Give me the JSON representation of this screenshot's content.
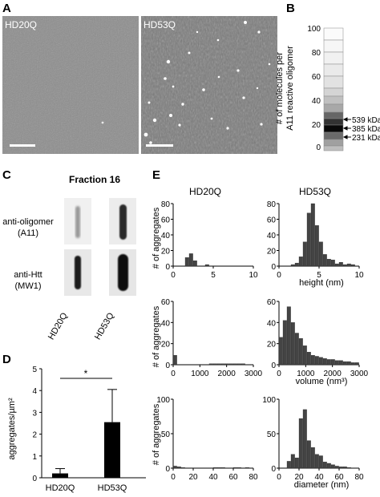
{
  "panels": {
    "A": {
      "letter": "A",
      "image_labels": [
        "HD20Q",
        "HD53Q"
      ]
    },
    "B": {
      "letter": "B",
      "ylabel_line1": "# of molecules per",
      "ylabel_line2": "A11 reactive oligomer",
      "ticks": [
        "100",
        "80",
        "60",
        "40",
        "20",
        "0"
      ],
      "markers": [
        "539 kDa",
        "385 kDa",
        "231 kDa"
      ]
    },
    "C": {
      "letter": "C",
      "title": "Fraction 16",
      "row1_line1": "anti-oligomer",
      "row1_line2": "(A11)",
      "row2_line1": "anti-Htt",
      "row2_line2": "(MW1)",
      "col_labels": [
        "HD20Q",
        "HD53Q"
      ]
    },
    "D": {
      "letter": "D",
      "significance": "*"
    },
    "E": {
      "letter": "E",
      "col_titles": [
        "HD20Q",
        "HD53Q"
      ],
      "ylabel": "# of aggregates",
      "xlabels": [
        "height (nm)",
        "volume (nm³)",
        "diameter (nm)"
      ]
    }
  },
  "colors": {
    "bar": "#444444",
    "axis": "#000000"
  },
  "chart_data": [
    {
      "type": "bar",
      "panel": "D",
      "categories": [
        "HD20Q",
        "HD53Q"
      ],
      "values": [
        0.2,
        2.55
      ],
      "errors": [
        0.22,
        1.5
      ],
      "ylabel": "aggregates/µm²",
      "ylim": [
        0,
        5
      ],
      "yticks": [
        0,
        1,
        2,
        3,
        4,
        5
      ]
    },
    {
      "type": "bar",
      "panel": "E",
      "group": "HD20Q height",
      "bin_start": 0,
      "bin_width": 0.5,
      "values": [
        0,
        0,
        0,
        11,
        16,
        7,
        0,
        0,
        2
      ],
      "xlim": [
        0,
        10
      ],
      "ylim": [
        0,
        80
      ],
      "xticks": [
        0,
        5,
        10
      ],
      "yticks": [
        0,
        20,
        40,
        60,
        80
      ]
    },
    {
      "type": "bar",
      "panel": "E",
      "group": "HD53Q height",
      "bin_start": 0,
      "bin_width": 0.5,
      "values": [
        0,
        0,
        0,
        2,
        4,
        12,
        31,
        68,
        80,
        52,
        31,
        15,
        9,
        8,
        3,
        5,
        2,
        3,
        2
      ],
      "xlim": [
        0,
        10
      ],
      "ylim": [
        0,
        80
      ],
      "xticks": [
        0,
        5,
        10
      ],
      "yticks": [
        0,
        20,
        40,
        60,
        80
      ]
    },
    {
      "type": "bar",
      "panel": "E",
      "group": "HD20Q volume",
      "bin_start": 0,
      "bin_width": 150,
      "values": [
        9,
        0,
        0,
        0,
        0,
        0,
        0,
        0,
        0,
        1,
        1,
        1,
        1,
        1,
        1,
        1,
        1,
        1
      ],
      "xlim": [
        0,
        3000
      ],
      "ylim": [
        0,
        60
      ],
      "xticks": [
        0,
        1000,
        2000,
        3000
      ],
      "yticks": [
        0,
        20,
        40,
        60
      ]
    },
    {
      "type": "bar",
      "panel": "E",
      "group": "HD53Q volume",
      "bin_start": 0,
      "bin_width": 150,
      "values": [
        26,
        42,
        55,
        40,
        30,
        25,
        18,
        12,
        9,
        8,
        7,
        6,
        5,
        5,
        4,
        4,
        3,
        3,
        2,
        2
      ],
      "xlim": [
        0,
        3000
      ],
      "ylim": [
        0,
        60
      ],
      "xticks": [
        0,
        1000,
        2000,
        3000
      ],
      "yticks": [
        0,
        20,
        40,
        60
      ]
    },
    {
      "type": "bar",
      "panel": "E",
      "group": "HD20Q diameter",
      "bin_start": 0,
      "bin_width": 4,
      "values": [
        3,
        2,
        1,
        0,
        0,
        0,
        0,
        0,
        0,
        0,
        1,
        1,
        1,
        0,
        0,
        1,
        1,
        0,
        1
      ],
      "xlim": [
        0,
        80
      ],
      "ylim": [
        0,
        100
      ],
      "xticks": [
        0,
        20,
        40,
        60,
        80
      ],
      "yticks": [
        0,
        50,
        100
      ]
    },
    {
      "type": "bar",
      "panel": "E",
      "group": "HD53Q diameter",
      "bin_start": 0,
      "bin_width": 4,
      "values": [
        0,
        0,
        10,
        20,
        15,
        72,
        85,
        40,
        30,
        20,
        18,
        9,
        7,
        5,
        3,
        2,
        2,
        1
      ],
      "xlim": [
        0,
        80
      ],
      "ylim": [
        0,
        100
      ],
      "xticks": [
        0,
        20,
        40,
        60,
        80
      ],
      "yticks": [
        0,
        50,
        100
      ]
    }
  ]
}
